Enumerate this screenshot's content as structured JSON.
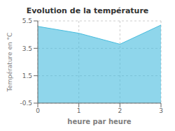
{
  "chart_data": {
    "type": "area",
    "title": "Evolution de la température",
    "xlabel": "heure par heure",
    "ylabel": "Température en °C",
    "x": [
      0,
      1,
      2,
      3
    ],
    "values": [
      5.1,
      4.6,
      3.8,
      5.2
    ],
    "color": "#44bbdd",
    "xlim": [
      0,
      3
    ],
    "ylim": [
      -0.5,
      5.5
    ],
    "xticks": [
      0,
      1,
      2,
      3
    ],
    "yticks": [
      -0.5,
      1.5,
      3.5,
      5.5
    ],
    "grid": true
  }
}
